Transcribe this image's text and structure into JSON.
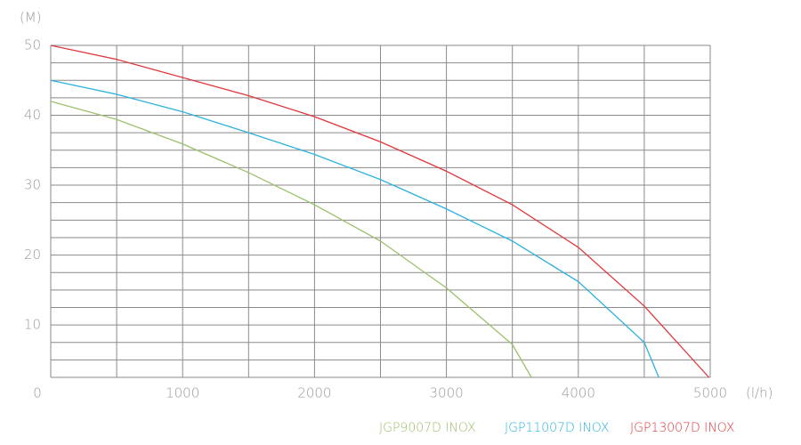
{
  "chart_data": {
    "type": "line",
    "y_label": "(M)",
    "x_label": "(l/h)",
    "xlim": [
      0,
      5000
    ],
    "xticks": [
      0,
      1000,
      2000,
      3000,
      4000,
      5000
    ],
    "x_minor_ticks": [
      500,
      1500,
      2500,
      3500,
      4500
    ],
    "ylim": [
      2.5,
      50
    ],
    "yticks": [
      10,
      20,
      30,
      40,
      50
    ],
    "y_minor_ticks": [
      2.5,
      5,
      7.5,
      12.5,
      15,
      17.5,
      22.5,
      25,
      27.5,
      32.5,
      35,
      37.5,
      42.5,
      45,
      47.5
    ],
    "grid": true,
    "series": [
      {
        "name": "JGP9007D INOX",
        "color": "#9cc06c",
        "x": [
          0,
          500,
          1000,
          1500,
          2000,
          2500,
          3000,
          3500,
          3644
        ],
        "values": [
          42,
          39.4,
          35.9,
          31.8,
          27.2,
          22,
          15.3,
          7.2,
          2.5
        ]
      },
      {
        "name": "JGP11007D INOX",
        "color": "#2cb1e0",
        "x": [
          0,
          500,
          1000,
          1500,
          2000,
          2500,
          3000,
          3500,
          4000,
          4500,
          4610
        ],
        "values": [
          45,
          43,
          40.5,
          37.5,
          34.4,
          30.8,
          26.6,
          22,
          16.2,
          7.5,
          2.5
        ]
      },
      {
        "name": "JGP13007D INOX",
        "color": "#e0383c",
        "x": [
          0,
          500,
          1000,
          1500,
          2000,
          2500,
          3000,
          3500,
          4000,
          4500,
          4990
        ],
        "values": [
          50,
          48,
          45.4,
          42.8,
          39.8,
          36.2,
          32,
          27.2,
          21.1,
          12.7,
          2.5
        ]
      }
    ]
  }
}
